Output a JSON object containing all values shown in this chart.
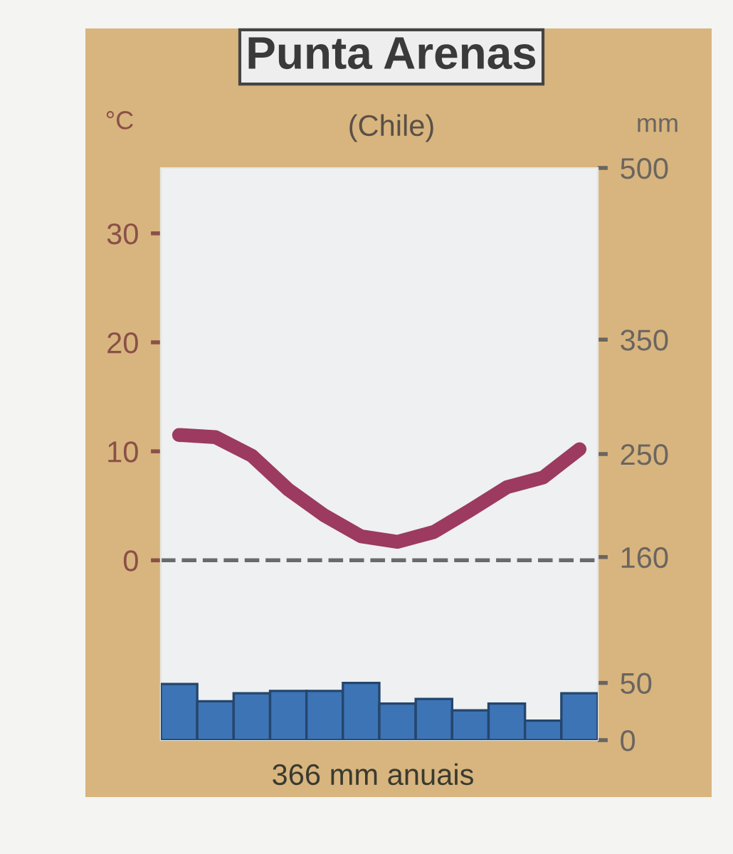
{
  "chart_data": {
    "type": "bar",
    "title": "Punta Arenas",
    "subtitle": "(Chile)",
    "ylabel": "°C",
    "y2label": "mm",
    "annotations": [
      "366 mm anuais"
    ],
    "categories": [
      null,
      null,
      null,
      null,
      null,
      null,
      null,
      null,
      null,
      null,
      null,
      null
    ],
    "series": [
      {
        "axis": "y2",
        "color": "#3d74b5",
        "values": [
          49,
          34,
          41,
          43,
          43,
          50,
          32,
          36,
          26,
          32,
          17,
          41
        ]
      },
      {
        "type": "line",
        "axis": "y",
        "color": "#9c3a60",
        "values": [
          11.5,
          11.3,
          9.6,
          6.5,
          4.1,
          2.2,
          1.7,
          2.6,
          4.6,
          6.7,
          7.6,
          10.2
        ]
      }
    ],
    "ylim": [
      -16.5,
      36
    ],
    "yticks": [
      0,
      10,
      20,
      30
    ],
    "y2lim": [
      0,
      500
    ],
    "y2ticks": [
      0,
      50,
      160,
      250,
      350,
      500
    ],
    "ref_lines": [
      {
        "axis": "y",
        "value": 0,
        "color": "#6a6a6a",
        "line_style": "dashed"
      }
    ],
    "grid": false,
    "legend": false,
    "marker": "none",
    "line_style": "solid"
  }
}
